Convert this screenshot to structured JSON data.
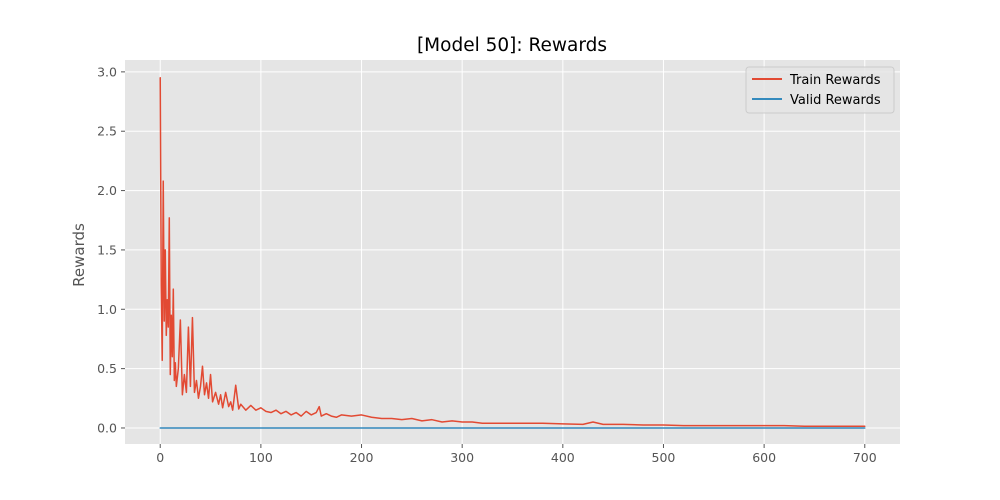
{
  "chart_data": {
    "type": "line",
    "title": "[Model 50]: Rewards",
    "xlabel": "",
    "ylabel": "Rewards",
    "xlim": [
      -35,
      735
    ],
    "ylim": [
      -0.135,
      3.1
    ],
    "x_ticks": [
      0,
      100,
      200,
      300,
      400,
      500,
      600,
      700
    ],
    "y_ticks": [
      0.0,
      0.5,
      1.0,
      1.5,
      2.0,
      2.5,
      3.0
    ],
    "x_tick_labels": [
      "0",
      "100",
      "200",
      "300",
      "400",
      "500",
      "600",
      "700"
    ],
    "y_tick_labels": [
      "0.0",
      "0.5",
      "1.0",
      "1.5",
      "2.0",
      "2.5",
      "3.0"
    ],
    "grid": true,
    "legend_position": "top-right",
    "series": [
      {
        "name": "Train Rewards",
        "color": "#E24A33",
        "x": [
          0,
          1,
          2,
          3,
          4,
          5,
          6,
          7,
          8,
          9,
          10,
          11,
          12,
          13,
          14,
          15,
          16,
          18,
          20,
          22,
          24,
          26,
          28,
          30,
          32,
          34,
          36,
          38,
          40,
          42,
          44,
          46,
          48,
          50,
          52,
          55,
          58,
          60,
          62,
          65,
          68,
          70,
          72,
          75,
          78,
          80,
          85,
          90,
          95,
          100,
          105,
          110,
          115,
          120,
          125,
          130,
          135,
          140,
          145,
          150,
          155,
          158,
          160,
          165,
          170,
          175,
          180,
          190,
          200,
          210,
          220,
          230,
          240,
          250,
          260,
          270,
          280,
          290,
          300,
          310,
          320,
          340,
          360,
          380,
          400,
          420,
          430,
          440,
          460,
          480,
          500,
          520,
          540,
          560,
          580,
          600,
          620,
          640,
          660,
          680,
          700
        ],
        "y": [
          2.95,
          1.2,
          0.57,
          2.08,
          0.9,
          1.5,
          0.78,
          1.08,
          0.85,
          1.77,
          0.45,
          0.95,
          0.6,
          1.17,
          0.4,
          0.55,
          0.35,
          0.5,
          0.91,
          0.28,
          0.45,
          0.3,
          0.85,
          0.35,
          0.93,
          0.3,
          0.4,
          0.25,
          0.35,
          0.52,
          0.28,
          0.38,
          0.25,
          0.45,
          0.22,
          0.3,
          0.2,
          0.28,
          0.17,
          0.3,
          0.18,
          0.22,
          0.15,
          0.36,
          0.16,
          0.2,
          0.15,
          0.19,
          0.15,
          0.17,
          0.14,
          0.13,
          0.15,
          0.12,
          0.14,
          0.11,
          0.13,
          0.1,
          0.14,
          0.11,
          0.13,
          0.18,
          0.1,
          0.12,
          0.1,
          0.09,
          0.11,
          0.1,
          0.11,
          0.09,
          0.08,
          0.08,
          0.07,
          0.08,
          0.06,
          0.07,
          0.05,
          0.06,
          0.05,
          0.05,
          0.04,
          0.04,
          0.04,
          0.04,
          0.035,
          0.03,
          0.05,
          0.03,
          0.03,
          0.025,
          0.025,
          0.02,
          0.02,
          0.02,
          0.02,
          0.02,
          0.02,
          0.015,
          0.015,
          0.015,
          0.015
        ]
      },
      {
        "name": "Valid Rewards",
        "color": "#348ABD",
        "x": [
          0,
          700
        ],
        "y": [
          0.0,
          0.0
        ]
      }
    ]
  }
}
